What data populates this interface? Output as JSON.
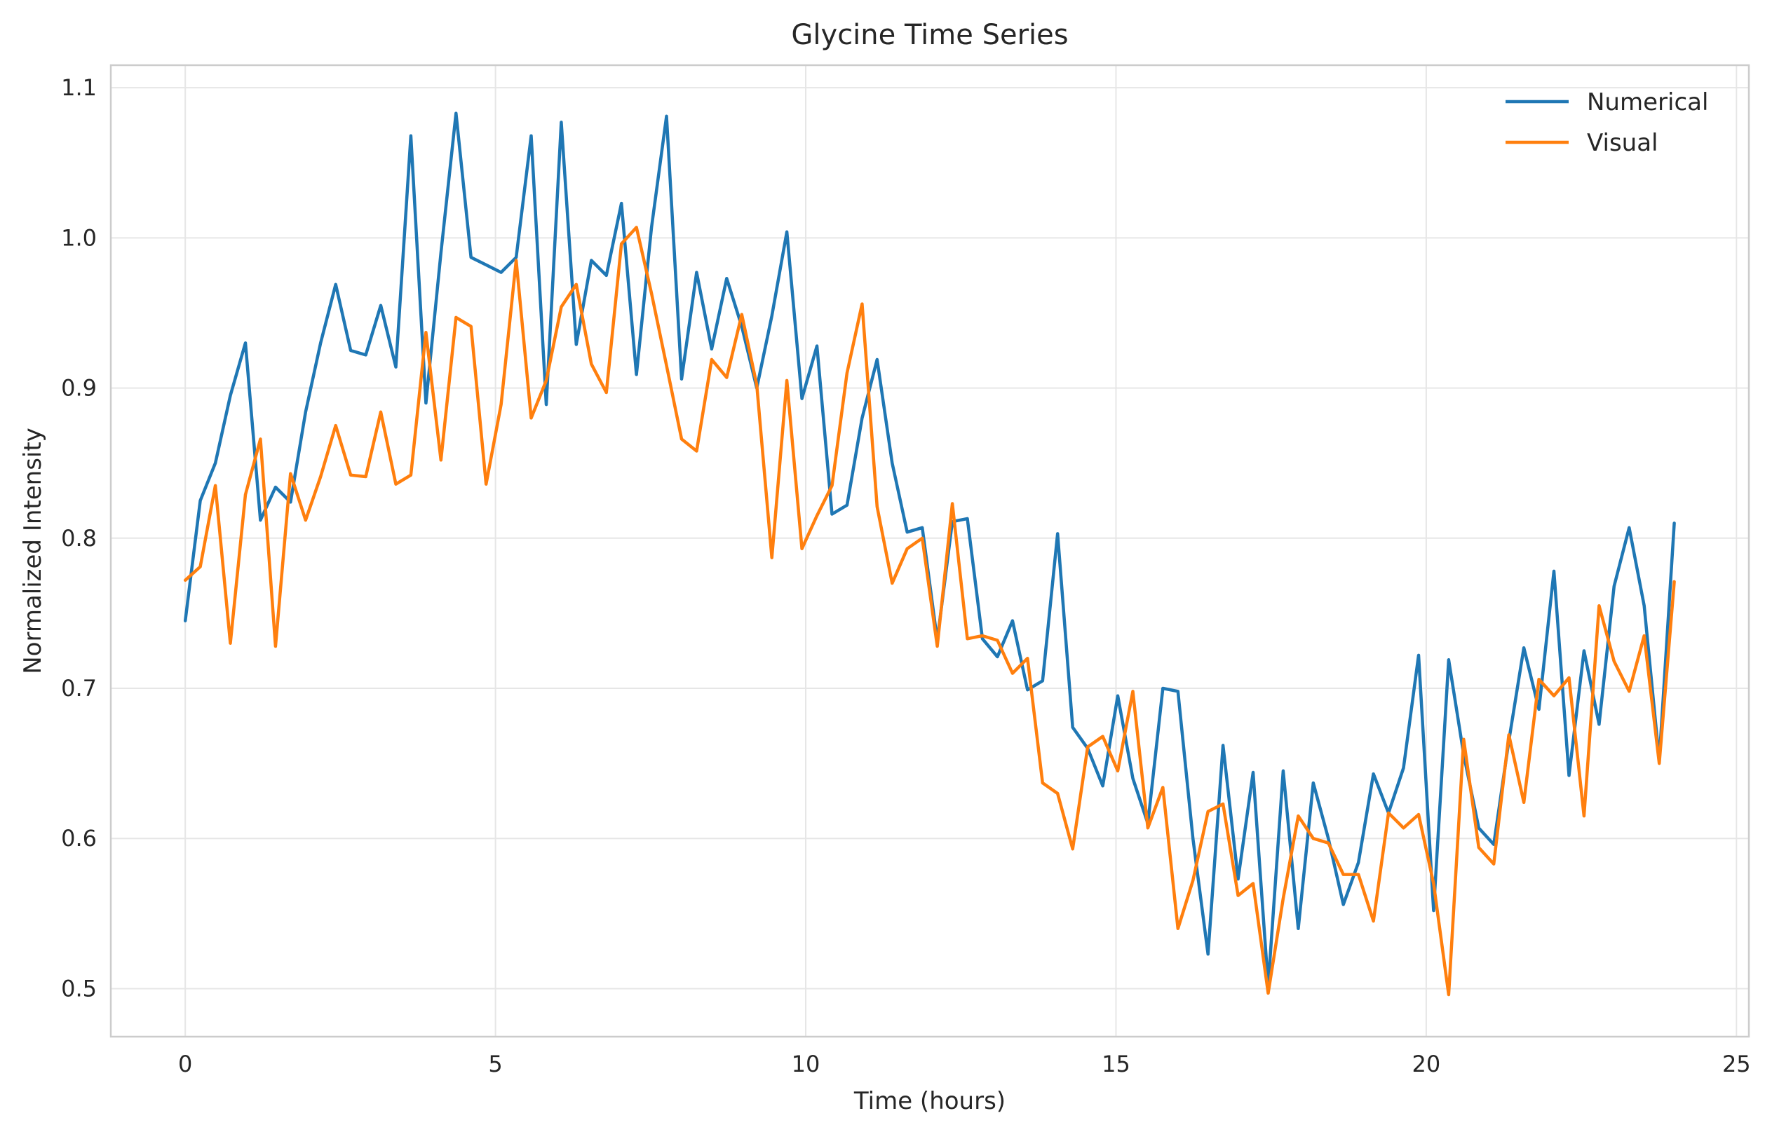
{
  "chart_data": {
    "type": "line",
    "title": "Glycine Time Series",
    "xlabel": "Time (hours)",
    "ylabel": "Normalized Intensity",
    "xlim": [
      -1.2,
      25.2
    ],
    "ylim": [
      0.468,
      1.115
    ],
    "xticks": [
      0,
      5,
      10,
      15,
      20,
      25
    ],
    "yticks": [
      0.5,
      0.6,
      0.7,
      0.8,
      0.9,
      1.0,
      1.1
    ],
    "xtick_labels": [
      "0",
      "5",
      "10",
      "15",
      "20",
      "25"
    ],
    "ytick_labels": [
      "0.5",
      "0.6",
      "0.7",
      "0.8",
      "0.9",
      "1.0",
      "1.1"
    ],
    "grid": true,
    "legend_position": "top-right",
    "x_start": 0,
    "x_step": 0.2424,
    "series": [
      {
        "name": "Numerical",
        "color": "#1f77b4",
        "values": [
          0.745,
          0.825,
          0.85,
          0.895,
          0.93,
          0.812,
          0.834,
          0.824,
          0.884,
          0.93,
          0.969,
          0.925,
          0.922,
          0.955,
          0.914,
          1.068,
          0.89,
          0.99,
          1.083,
          0.987,
          0.982,
          0.977,
          0.987,
          1.068,
          0.889,
          1.077,
          0.929,
          0.985,
          0.975,
          1.023,
          0.909,
          1.007,
          1.081,
          0.906,
          0.977,
          0.926,
          0.973,
          0.941,
          0.9,
          0.948,
          1.004,
          0.893,
          0.928,
          0.816,
          0.822,
          0.88,
          0.919,
          0.85,
          0.804,
          0.807,
          0.732,
          0.811,
          0.813,
          0.733,
          0.721,
          0.745,
          0.699,
          0.705,
          0.803,
          0.674,
          0.66,
          0.635,
          0.695,
          0.64,
          0.61,
          0.7,
          0.698,
          0.6,
          0.523,
          0.662,
          0.573,
          0.644,
          0.502,
          0.645,
          0.54,
          0.637,
          0.6,
          0.556,
          0.584,
          0.643,
          0.617,
          0.647,
          0.722,
          0.552,
          0.719,
          0.656,
          0.607,
          0.596,
          0.665,
          0.727,
          0.686,
          0.778,
          0.642,
          0.725,
          0.676,
          0.768,
          0.807,
          0.755,
          0.652,
          0.81
        ]
      },
      {
        "name": "Visual",
        "color": "#ff7f0e",
        "values": [
          0.772,
          0.781,
          0.835,
          0.73,
          0.829,
          0.866,
          0.728,
          0.843,
          0.812,
          0.841,
          0.875,
          0.842,
          0.841,
          0.884,
          0.836,
          0.842,
          0.937,
          0.852,
          0.947,
          0.941,
          0.836,
          0.889,
          0.985,
          0.88,
          0.905,
          0.954,
          0.969,
          0.916,
          0.897,
          0.996,
          1.007,
          0.963,
          0.915,
          0.866,
          0.858,
          0.919,
          0.907,
          0.949,
          0.902,
          0.787,
          0.905,
          0.793,
          0.815,
          0.835,
          0.91,
          0.956,
          0.821,
          0.77,
          0.793,
          0.8,
          0.728,
          0.823,
          0.733,
          0.735,
          0.732,
          0.71,
          0.72,
          0.637,
          0.63,
          0.593,
          0.661,
          0.668,
          0.645,
          0.698,
          0.607,
          0.634,
          0.54,
          0.572,
          0.618,
          0.623,
          0.562,
          0.57,
          0.497,
          0.56,
          0.615,
          0.6,
          0.597,
          0.576,
          0.576,
          0.545,
          0.617,
          0.607,
          0.616,
          0.57,
          0.496,
          0.666,
          0.594,
          0.583,
          0.669,
          0.624,
          0.706,
          0.695,
          0.707,
          0.615,
          0.755,
          0.718,
          0.698,
          0.735,
          0.65,
          0.771
        ]
      }
    ]
  }
}
